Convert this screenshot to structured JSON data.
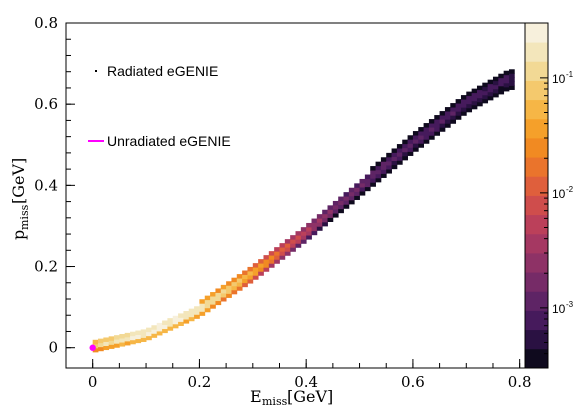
{
  "chart_data": {
    "type": "heatmap",
    "xlabel": {
      "main": "E",
      "sub": "miss",
      "unit": "[GeV]"
    },
    "ylabel": {
      "main": "p",
      "sub": "miss",
      "unit": "[GeV]"
    },
    "xlim": [
      -0.05,
      0.81
    ],
    "ylim": [
      -0.05,
      0.8
    ],
    "x_ticks": [
      0,
      0.2,
      0.4,
      0.6,
      0.8
    ],
    "x_tick_labels": [
      "0",
      "0.2",
      "0.4",
      "0.6",
      "0.8"
    ],
    "y_ticks": [
      0,
      0.2,
      0.4,
      0.6,
      0.8
    ],
    "y_tick_labels": [
      "0",
      "0.2",
      "0.4",
      "0.6",
      "0.8"
    ],
    "z_scale": "log",
    "z_range": [
      0.0003,
      0.3
    ],
    "colorbar_ticks": [
      {
        "value": 0.1,
        "base": "10",
        "exp": "-1"
      },
      {
        "value": 0.01,
        "base": "10",
        "exp": "-2"
      },
      {
        "value": 0.001,
        "base": "10",
        "exp": "-3"
      }
    ],
    "colormap": [
      "#0f0a1e",
      "#2a1142",
      "#461a5c",
      "#5e2465",
      "#762b67",
      "#8e3266",
      "#a53862",
      "#bb405a",
      "#cf4d4c",
      "#df5f3c",
      "#ea742c",
      "#f18a22",
      "#f5a02a",
      "#f6b646",
      "#f4c96d",
      "#f2d995",
      "#f3e6bb",
      "#f7f0dc"
    ],
    "ridge": [
      [
        0.0,
        0.0
      ],
      [
        0.1,
        0.03
      ],
      [
        0.2,
        0.09
      ],
      [
        0.3,
        0.18
      ],
      [
        0.4,
        0.28
      ],
      [
        0.5,
        0.39
      ],
      [
        0.6,
        0.5
      ],
      [
        0.7,
        0.6
      ],
      [
        0.78,
        0.66
      ]
    ],
    "density_peak": [
      0.12,
      0.045
    ],
    "series": [
      {
        "name": "Radiated eGENIE",
        "style": "heatmap"
      },
      {
        "name": "Unradiated eGENIE",
        "style": "point",
        "x": 0.0,
        "y": 0.0,
        "color": "#ff00ff"
      }
    ],
    "legend_position": "top-left"
  }
}
